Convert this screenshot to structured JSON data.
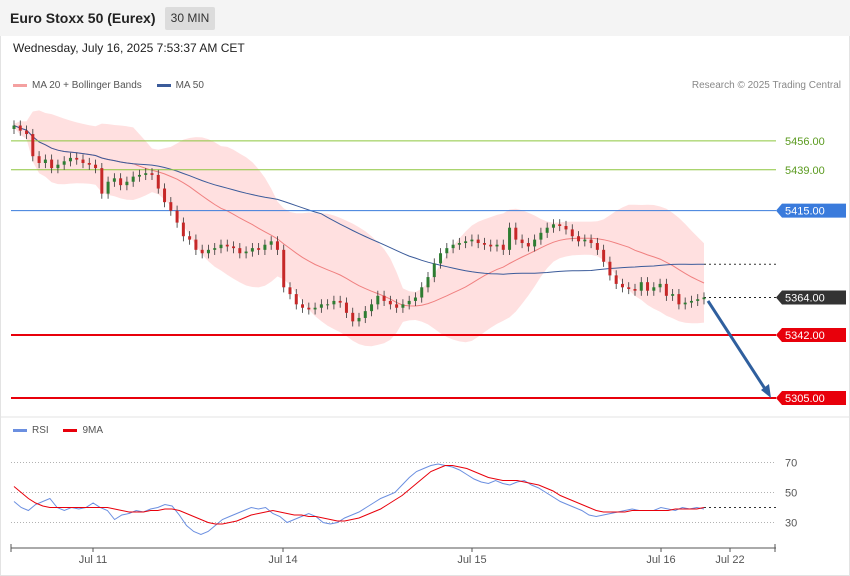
{
  "header": {
    "title": "Euro Stoxx 50 (Eurex)",
    "timeframe": "30 MIN",
    "datetime": "Wednesday, July 16, 2025 7:53:37 AM CET"
  },
  "legend": {
    "ma20_label": "MA 20 + Bollinger Bands",
    "ma50_label": "MA 50",
    "credit": "Research © 2025 Trading Central"
  },
  "rsi_legend": {
    "rsi_label": "RSI",
    "ma9_label": "9MA"
  },
  "colors": {
    "up": "#2e7d32",
    "down": "#c62828",
    "bollinger": "#ffd6d6",
    "ma20": "#f08080",
    "ma50": "#3b5b9a",
    "support": "#e8000b",
    "resistance": "#8dc63f",
    "pivot": "#3a7bdc",
    "rsi": "#6b8fe0",
    "rsi_ma": "#e8000b",
    "arrow": "#2f5f9e"
  },
  "chart_data": [
    {
      "type": "candlestick",
      "title": "Euro Stoxx 50 (Eurex)",
      "timeframe": "30 MIN",
      "x_tick_labels": [
        "Jul 11",
        "Jul 14",
        "Jul 15",
        "Jul 16",
        "Jul 22"
      ],
      "ylim": [
        5295,
        5480
      ],
      "close": [
        5465,
        5462,
        5460,
        5447,
        5443,
        5445,
        5440,
        5442,
        5444,
        5446,
        5445,
        5443,
        5442,
        5440,
        5425,
        5432,
        5434,
        5430,
        5432,
        5435,
        5436,
        5437,
        5436,
        5428,
        5420,
        5415,
        5408,
        5400,
        5398,
        5392,
        5390,
        5392,
        5393,
        5395,
        5394,
        5393,
        5390,
        5391,
        5393,
        5392,
        5395,
        5397,
        5392,
        5370,
        5366,
        5360,
        5358,
        5357,
        5358,
        5360,
        5360,
        5362,
        5361,
        5355,
        5350,
        5352,
        5356,
        5360,
        5365,
        5362,
        5360,
        5358,
        5360,
        5362,
        5364,
        5370,
        5376,
        5384,
        5390,
        5393,
        5395,
        5396,
        5397,
        5398,
        5396,
        5395,
        5394,
        5395,
        5392,
        5405,
        5398,
        5396,
        5394,
        5398,
        5402,
        5405,
        5407,
        5406,
        5404,
        5400,
        5397,
        5398,
        5396,
        5392,
        5385,
        5377,
        5372,
        5370,
        5369,
        5368,
        5373,
        5368,
        5370,
        5372,
        5365,
        5366,
        5360,
        5361,
        5362,
        5363,
        5364
      ],
      "levels": [
        {
          "label": "5456.00",
          "value": 5456,
          "kind": "resistance"
        },
        {
          "label": "5439.00",
          "value": 5439,
          "kind": "resistance"
        },
        {
          "label": "5415.00",
          "value": 5415,
          "kind": "pivot"
        },
        {
          "label": "5364.00",
          "value": 5364,
          "kind": "last"
        },
        {
          "label": "5342.00",
          "value": 5342,
          "kind": "support"
        },
        {
          "label": "5305.00",
          "value": 5305,
          "kind": "support"
        }
      ],
      "indicators": [
        "MA 20 + Bollinger Bands",
        "MA 50"
      ],
      "forecast_arrow": {
        "from": 5362,
        "to": 5305
      }
    },
    {
      "type": "line",
      "title": "RSI",
      "ylim": [
        15,
        85
      ],
      "y_ticks": [
        30,
        50,
        70
      ],
      "series": [
        {
          "name": "RSI",
          "values": [
            44,
            40,
            38,
            42,
            44,
            46,
            40,
            38,
            40,
            39,
            40,
            43,
            40,
            38,
            32,
            35,
            36,
            38,
            37,
            39,
            40,
            42,
            41,
            35,
            28,
            24,
            22,
            24,
            28,
            32,
            34,
            36,
            38,
            40,
            39,
            40,
            36,
            34,
            30,
            32,
            34,
            36,
            34,
            30,
            29,
            30,
            33,
            35,
            37,
            40,
            43,
            46,
            48,
            50,
            55,
            60,
            64,
            66,
            68,
            69,
            68,
            67,
            65,
            62,
            59,
            57,
            56,
            58,
            56,
            55,
            57,
            58,
            55,
            53,
            50,
            47,
            44,
            42,
            40,
            38,
            35,
            34,
            35,
            36,
            37,
            38,
            39,
            38,
            38,
            38,
            40,
            39,
            38,
            40,
            39,
            40,
            39
          ]
        },
        {
          "name": "9MA",
          "values": [
            54,
            50,
            46,
            43,
            41,
            40,
            40,
            40,
            40,
            40,
            40,
            40,
            40,
            40,
            39,
            38,
            37,
            37,
            37,
            38,
            38,
            39,
            39,
            38,
            36,
            34,
            32,
            30,
            29,
            29,
            30,
            31,
            33,
            35,
            36,
            37,
            38,
            37,
            36,
            35,
            35,
            34,
            34,
            33,
            32,
            31,
            31,
            32,
            33,
            35,
            37,
            39,
            42,
            45,
            48,
            52,
            56,
            60,
            64,
            66,
            68,
            68,
            67,
            66,
            64,
            62,
            60,
            59,
            58,
            58,
            58,
            57,
            56,
            55,
            53,
            51,
            48,
            46,
            44,
            42,
            40,
            38,
            37,
            37,
            37,
            37,
            38,
            38,
            38,
            38,
            38,
            38,
            39,
            39,
            39,
            39,
            40
          ]
        }
      ]
    }
  ]
}
